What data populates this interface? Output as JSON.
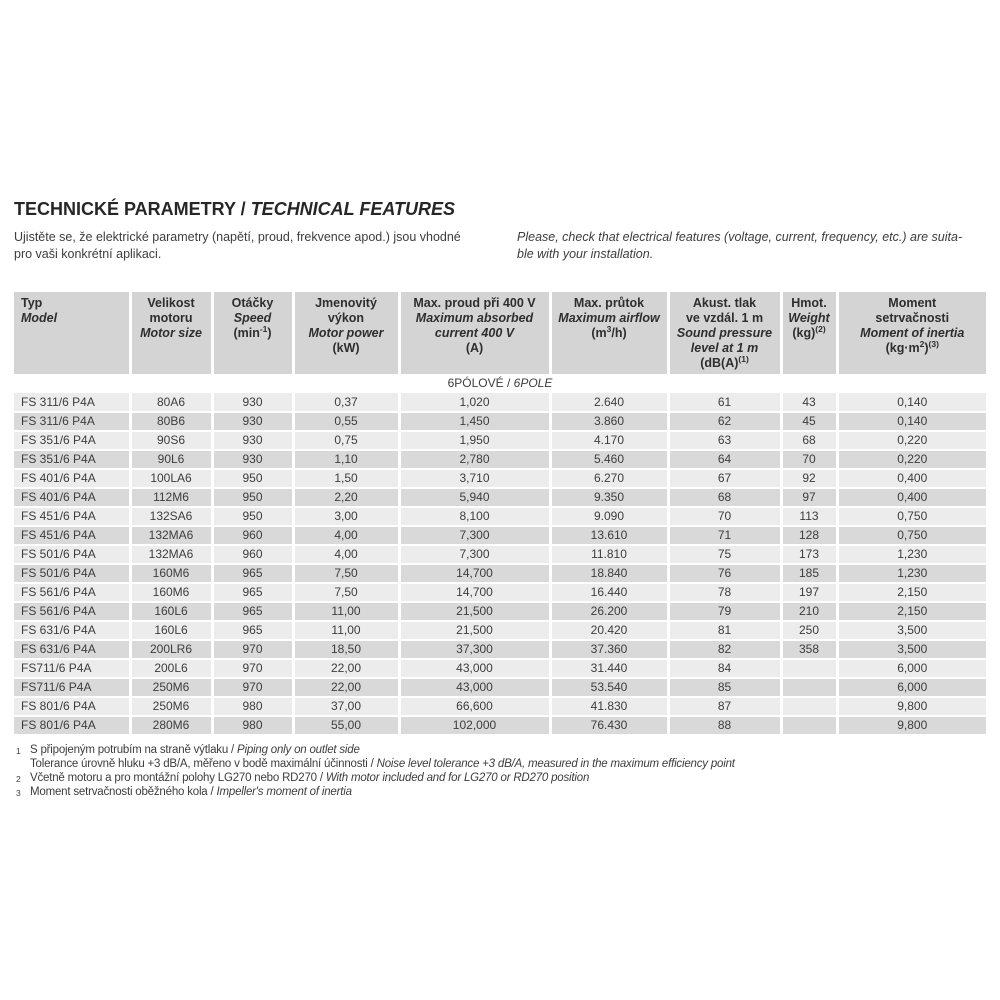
{
  "title": {
    "cz": "TECHNICKÉ PARAMETRY / ",
    "en": "TECHNICAL FEATURES"
  },
  "intro": {
    "cz": "Ujistěte se, že elektrické parametry (napětí, proud, frekvence apod.) jsou vhodné\npro vaši konkrétní aplikaci.",
    "en": "Please, check that electrical features (voltage, current, frequency, etc.) are suita-\nble with your installation."
  },
  "colors": {
    "header_bg": "#d4d4d4",
    "row_light": "#ececec",
    "row_dark": "#d9d9d9",
    "text": "#3d3d3d"
  },
  "table": {
    "section": {
      "cz": "6PÓLOVÉ / ",
      "en": "6POLE"
    },
    "columns": [
      {
        "id": "model",
        "width": 116,
        "align": "left",
        "lines": [
          [
            {
              "t": "Typ"
            }
          ],
          [
            {
              "t": "Model",
              "i": 1
            }
          ]
        ]
      },
      {
        "id": "motor-size",
        "width": 82,
        "lines": [
          [
            {
              "t": "Velikost"
            }
          ],
          [
            {
              "t": "motoru"
            }
          ],
          [
            {
              "t": "Motor size",
              "i": 1
            }
          ]
        ]
      },
      {
        "id": "speed",
        "width": 81,
        "lines": [
          [
            {
              "t": "Otáčky"
            }
          ],
          [
            {
              "t": "Speed",
              "i": 1
            }
          ],
          [
            {
              "t": "(min"
            },
            {
              "t": "-1",
              "sup": 1
            },
            {
              "t": ")"
            }
          ]
        ]
      },
      {
        "id": "motor-power",
        "width": 106,
        "lines": [
          [
            {
              "t": "Jmenovitý"
            }
          ],
          [
            {
              "t": "výkon"
            }
          ],
          [
            {
              "t": "Motor power",
              "i": 1
            }
          ],
          [
            {
              "t": "(kW)"
            }
          ]
        ]
      },
      {
        "id": "max-current",
        "width": 151,
        "lines": [
          [
            {
              "t": "Max. proud při 400 V"
            }
          ],
          [
            {
              "t": "Maximum absorbed",
              "i": 1
            }
          ],
          [
            {
              "t": "current 400 V",
              "i": 1
            }
          ],
          [
            {
              "t": "(A)"
            }
          ]
        ]
      },
      {
        "id": "max-airflow",
        "width": 118,
        "lines": [
          [
            {
              "t": "Max. průtok"
            }
          ],
          [
            {
              "t": "Maximum airflow",
              "i": 1
            }
          ],
          [
            {
              "t": "(m"
            },
            {
              "t": "3",
              "sup": 1
            },
            {
              "t": "/h)"
            }
          ]
        ]
      },
      {
        "id": "sound-pressure",
        "width": 113,
        "lines": [
          [
            {
              "t": "Akust. tlak"
            }
          ],
          [
            {
              "t": "ve vzdál. 1 m"
            }
          ],
          [
            {
              "t": "Sound pressure",
              "i": 1
            }
          ],
          [
            {
              "t": "level at 1 m",
              "i": 1
            }
          ],
          [
            {
              "t": "(dB(A)"
            },
            {
              "t": "(1)",
              "sup": 1
            }
          ]
        ]
      },
      {
        "id": "weight",
        "width": 56,
        "lines": [
          [
            {
              "t": "Hmot."
            }
          ],
          [
            {
              "t": "Weight",
              "i": 1
            }
          ],
          [
            {
              "t": "(kg)"
            },
            {
              "t": "(2)",
              "sup": 1
            }
          ]
        ]
      },
      {
        "id": "inertia",
        "width": 149,
        "lines": [
          [
            {
              "t": "Moment"
            }
          ],
          [
            {
              "t": "setrvačnosti"
            }
          ],
          [
            {
              "t": "Moment of inertia",
              "i": 1
            }
          ],
          [
            {
              "t": "(kg·m"
            },
            {
              "t": "2",
              "sup": 1
            },
            {
              "t": ")"
            },
            {
              "t": "(3)",
              "sup": 1
            }
          ]
        ]
      }
    ],
    "rows": [
      [
        "FS 311/6 P4A",
        "80A6",
        "930",
        "0,37",
        "1,020",
        "2.640",
        "61",
        "43",
        "0,140"
      ],
      [
        "FS 311/6 P4A",
        "80B6",
        "930",
        "0,55",
        "1,450",
        "3.860",
        "62",
        "45",
        "0,140"
      ],
      [
        "FS 351/6 P4A",
        "90S6",
        "930",
        "0,75",
        "1,950",
        "4.170",
        "63",
        "68",
        "0,220"
      ],
      [
        "FS 351/6 P4A",
        "90L6",
        "930",
        "1,10",
        "2,780",
        "5.460",
        "64",
        "70",
        "0,220"
      ],
      [
        "FS 401/6 P4A",
        "100LA6",
        "950",
        "1,50",
        "3,710",
        "6.270",
        "67",
        "92",
        "0,400"
      ],
      [
        "FS 401/6 P4A",
        "112M6",
        "950",
        "2,20",
        "5,940",
        "9.350",
        "68",
        "97",
        "0,400"
      ],
      [
        "FS 451/6 P4A",
        "132SA6",
        "950",
        "3,00",
        "8,100",
        "9.090",
        "70",
        "113",
        "0,750"
      ],
      [
        "FS 451/6 P4A",
        "132MA6",
        "960",
        "4,00",
        "7,300",
        "13.610",
        "71",
        "128",
        "0,750"
      ],
      [
        "FS 501/6 P4A",
        "132MA6",
        "960",
        "4,00",
        "7,300",
        "11.810",
        "75",
        "173",
        "1,230"
      ],
      [
        "FS 501/6 P4A",
        "160M6",
        "965",
        "7,50",
        "14,700",
        "18.840",
        "76",
        "185",
        "1,230"
      ],
      [
        "FS 561/6 P4A",
        "160M6",
        "965",
        "7,50",
        "14,700",
        "16.440",
        "78",
        "197",
        "2,150"
      ],
      [
        "FS 561/6 P4A",
        "160L6",
        "965",
        "11,00",
        "21,500",
        "26.200",
        "79",
        "210",
        "2,150"
      ],
      [
        "FS 631/6 P4A",
        "160L6",
        "965",
        "11,00",
        "21,500",
        "20.420",
        "81",
        "250",
        "3,500"
      ],
      [
        "FS 631/6 P4A",
        "200LR6",
        "970",
        "18,50",
        "37,300",
        "37.360",
        "82",
        "358",
        "3,500"
      ],
      [
        "FS711/6 P4A",
        "200L6",
        "970",
        "22,00",
        "43,000",
        "31.440",
        "84",
        "",
        "6,000"
      ],
      [
        "FS711/6 P4A",
        "250M6",
        "970",
        "22,00",
        "43,000",
        "53.540",
        "85",
        "",
        "6,000"
      ],
      [
        "FS 801/6 P4A",
        "250M6",
        "980",
        "37,00",
        "66,600",
        "41.830",
        "87",
        "",
        "9,800"
      ],
      [
        "FS 801/6 P4A",
        "280M6",
        "980",
        "55,00",
        "102,000",
        "76.430",
        "88",
        "",
        "9,800"
      ]
    ]
  },
  "footnotes": [
    {
      "m": "1",
      "cz": "S připojeným potrubím na straně výtlaku / ",
      "en": "Piping only on outlet side"
    },
    {
      "m": "",
      "cz": "Tolerance úrovně hluku +3 dB/A, měřeno v bodě maximální účinnosti / ",
      "en": "Noise level tolerance +3 dB/A, measured in the maximum efficiency point"
    },
    {
      "m": "2",
      "cz": "Včetně motoru a pro montážní polohy LG270 nebo RD270 / ",
      "en": "With motor included and for LG270 or RD270 position"
    },
    {
      "m": "3",
      "cz": "Moment setrvačnosti oběžného kola / ",
      "en": "Impeller's moment of inertia"
    }
  ]
}
